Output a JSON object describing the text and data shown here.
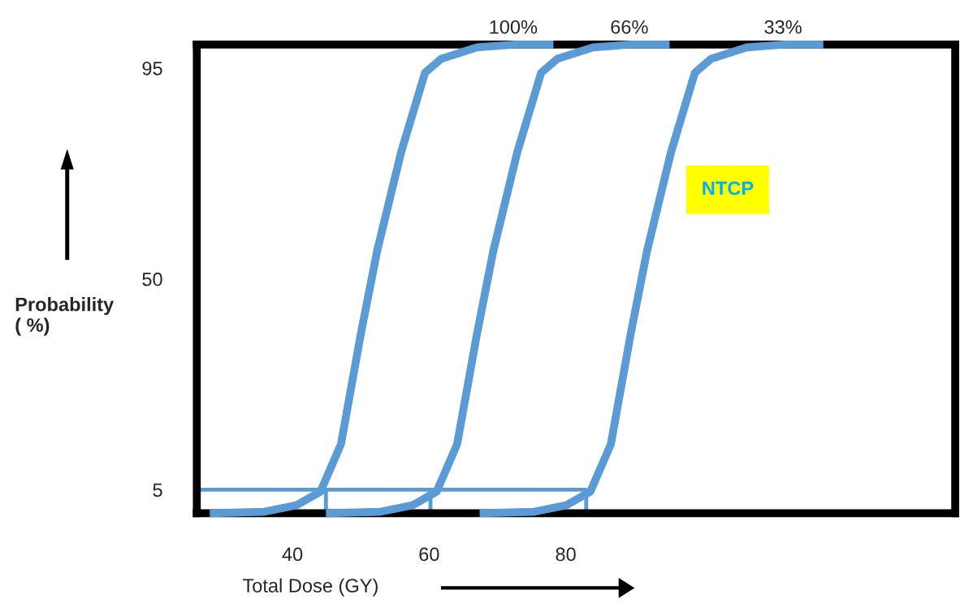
{
  "chart_data": {
    "type": "line",
    "xlabel": "Total Dose (GY)",
    "ylabel": "Probability\n( %)",
    "xlim": [
      26,
      137
    ],
    "xticks": [
      40,
      60,
      80
    ],
    "ylim": [
      0,
      100
    ],
    "yticks": [
      5,
      50,
      95
    ],
    "grid": false,
    "legend": false,
    "marker": "none",
    "line_style": "solid",
    "series": [
      {
        "name": "100%",
        "color": "#5b9bd5",
        "x": [
          27.9,
          35.9,
          40.6,
          44.1,
          47.1,
          50,
          52.4,
          55.9,
          59.4,
          61.8,
          67,
          72.3,
          78.2
        ],
        "values": [
          0,
          0.3,
          1.7,
          4.6,
          14.7,
          38.2,
          56,
          77,
          94,
          97,
          99.4,
          100,
          100
        ]
      },
      {
        "name": "66%",
        "color": "#5b9bd5",
        "x": [
          44.9,
          52.9,
          57.6,
          61.1,
          64.1,
          67,
          69.4,
          72.9,
          76.4,
          78.8,
          84,
          89.3,
          95.2
        ],
        "values": [
          0,
          0.3,
          1.7,
          4.6,
          14.7,
          38.2,
          56,
          77,
          94,
          97,
          99.4,
          100,
          100
        ]
      },
      {
        "name": "33%",
        "color": "#5b9bd5",
        "x": [
          67.4,
          75.4,
          80.1,
          83.6,
          86.6,
          89.5,
          91.9,
          95.4,
          98.9,
          101.3,
          106.5,
          111.8,
          117.7
        ],
        "values": [
          0,
          0.3,
          1.7,
          4.6,
          14.7,
          38.2,
          56,
          77,
          94,
          97,
          99.4,
          100,
          100
        ]
      },
      {
        "color": "#5b9bd5",
        "x": [
          26,
          44.9,
          44.9,
          44.9,
          60.2,
          60.2,
          60.2,
          83,
          83
        ],
        "values": [
          5,
          5,
          0,
          5,
          5,
          0,
          5,
          5,
          0
        ]
      }
    ],
    "annotations": [
      "NTCP"
    ]
  }
}
